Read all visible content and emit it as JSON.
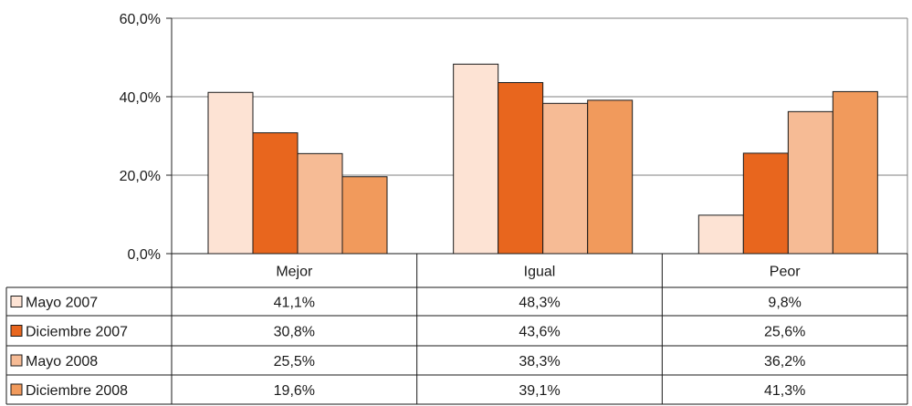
{
  "chart_data": {
    "type": "bar",
    "categories": [
      "Mejor",
      "Igual",
      "Peor"
    ],
    "series": [
      {
        "name": "Mayo 2007",
        "color": "#fde3d4",
        "values": [
          41.1,
          48.3,
          9.8
        ],
        "labels": [
          "41,1%",
          "48,3%",
          "9,8%"
        ]
      },
      {
        "name": "Diciembre 2007",
        "color": "#e8661e",
        "values": [
          30.8,
          43.6,
          25.6
        ],
        "labels": [
          "30,8%",
          "43,6%",
          "25,6%"
        ]
      },
      {
        "name": "Mayo 2008",
        "color": "#f6bb95",
        "values": [
          25.5,
          38.3,
          36.2
        ],
        "labels": [
          "25,5%",
          "38,3%",
          "36,2%"
        ]
      },
      {
        "name": "Diciembre 2008",
        "color": "#f19a5c",
        "values": [
          19.6,
          39.1,
          41.3
        ],
        "labels": [
          "19,6%",
          "39,1%",
          "41,3%"
        ]
      }
    ],
    "yticks": [
      0,
      20,
      40,
      60
    ],
    "ytick_labels": [
      "0,0%",
      "20,0%",
      "40,0%",
      "60,0%"
    ],
    "ylim": [
      0,
      60
    ],
    "grid": true,
    "legend": "data-table"
  }
}
